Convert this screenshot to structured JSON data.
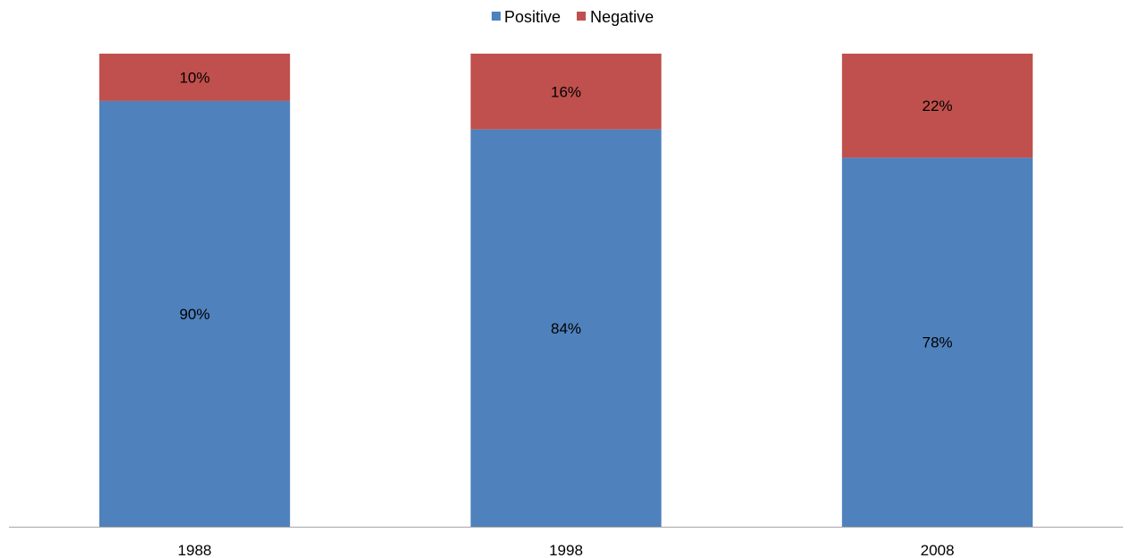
{
  "chart_data": {
    "type": "bar",
    "stacked": true,
    "percent_stacked": true,
    "categories": [
      "1988",
      "1998",
      "2008"
    ],
    "series": [
      {
        "name": "Positive",
        "color": "#4F81BD",
        "values": [
          90,
          84,
          78
        ],
        "labels": [
          "90%",
          "84%",
          "78%"
        ]
      },
      {
        "name": "Negative",
        "color": "#C0504D",
        "values": [
          10,
          16,
          22
        ],
        "labels": [
          "10%",
          "16%",
          "22%"
        ]
      }
    ],
    "title": "",
    "xlabel": "",
    "ylabel": "",
    "ylim": [
      0,
      100
    ],
    "y_axis_visible": false,
    "grid": false,
    "legend_position": "top-center",
    "axis_color": "#A6A6A6"
  }
}
